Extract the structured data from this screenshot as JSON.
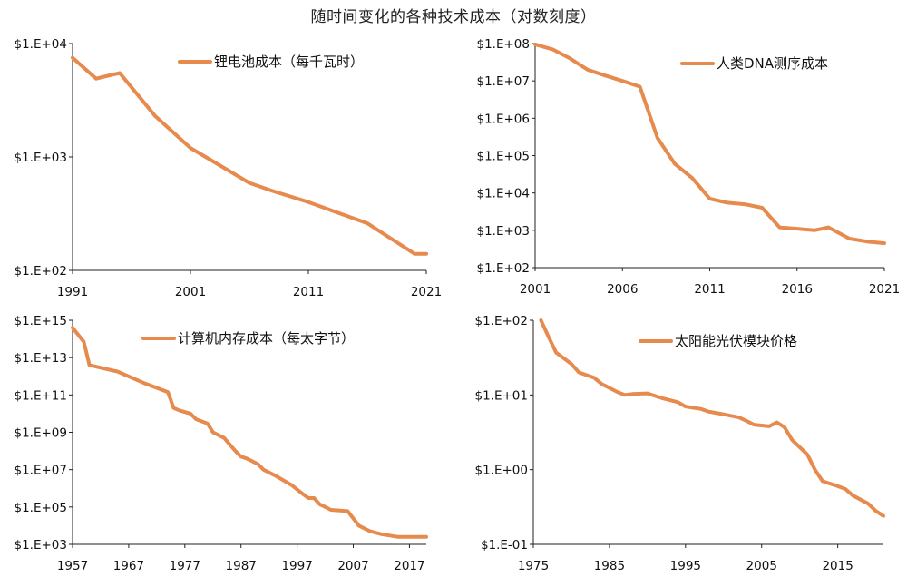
{
  "title": "随时间变化的各种技术成本（对数刻度）",
  "colors": {
    "line": "#E68A4D",
    "axis": "#222222"
  },
  "chart_data": [
    {
      "type": "line",
      "title": "",
      "series": [
        {
          "name": "锂电池成本（每千瓦时）",
          "x": [
            1991,
            1993,
            1994,
            1995,
            1998,
            2001,
            2006,
            2008,
            2011,
            2016,
            2020,
            2021
          ],
          "y": [
            7500,
            4900,
            5200,
            5500,
            2300,
            1200,
            590,
            500,
            400,
            260,
            140,
            140
          ]
        }
      ],
      "y_scale": "log",
      "xlim": [
        1991,
        2021
      ],
      "ylim": [
        100,
        10000
      ],
      "x_ticks": [
        1991,
        2001,
        2011,
        2021
      ],
      "x_tick_labels": [
        "1991",
        "2001",
        "2011",
        "2021"
      ],
      "y_ticks": [
        10000,
        1000,
        100
      ],
      "y_tick_labels": [
        "$1.E+04",
        "$1.E+03",
        "$1.E+02"
      ],
      "legend": "top-right",
      "grid": false
    },
    {
      "type": "line",
      "title": "",
      "series": [
        {
          "name": "人类DNA测序成本",
          "x": [
            2001,
            2002,
            2003,
            2004,
            2005,
            2006,
            2007,
            2008,
            2009,
            2010,
            2011,
            2012,
            2013,
            2014,
            2015,
            2016,
            2017,
            2017.8,
            2019,
            2020,
            2021
          ],
          "y": [
            95000000,
            70000000,
            40000000,
            20000000,
            14000000,
            10000000,
            7000000,
            300000,
            60000,
            25000,
            7000,
            5500,
            5000,
            4000,
            1200,
            1100,
            1000,
            1200,
            600,
            500,
            450
          ]
        }
      ],
      "y_scale": "log",
      "xlim": [
        2001,
        2021
      ],
      "ylim": [
        100,
        100000000
      ],
      "x_ticks": [
        2001,
        2006,
        2011,
        2016,
        2021
      ],
      "x_tick_labels": [
        "2001",
        "2006",
        "2011",
        "2016",
        "2021"
      ],
      "y_ticks": [
        100000000,
        10000000,
        1000000,
        100000,
        10000,
        1000,
        100
      ],
      "y_tick_labels": [
        "$1.E+08",
        "$1.E+07",
        "$1.E+06",
        "$1.E+05",
        "$1.E+04",
        "$1.E+03",
        "$1.E+02"
      ],
      "legend": "top-right",
      "grid": false
    },
    {
      "type": "line",
      "title": "",
      "series": [
        {
          "name": "计算机内存成本（每太字节）",
          "x": [
            1957,
            1959,
            1960,
            1965,
            1970,
            1974,
            1975,
            1976,
            1978,
            1979,
            1981,
            1982,
            1984,
            1986,
            1987,
            1988,
            1990,
            1991,
            1993,
            1996,
            1998,
            1999,
            2000,
            2001,
            2002,
            2003,
            2006,
            2008,
            2010,
            2012,
            2015,
            2020
          ],
          "y": [
            400000000000000.0,
            70000000000000.0,
            4000000000000.0,
            1800000000000.0,
            400000000000.0,
            140000000000.0,
            20000000000.0,
            15000000000.0,
            10000000000.0,
            5000000000.0,
            3000000000.0,
            1000000000.0,
            500000000.0,
            100000000.0,
            50000000.0,
            40000000.0,
            20000000.0,
            10000000.0,
            5000000.0,
            1500000.0,
            500000.0,
            300000.0,
            300000.0,
            140000.0,
            100000.0,
            70000.0,
            60000.0,
            10000.0,
            5000.0,
            3500.0,
            2500.0,
            2500.0
          ]
        }
      ],
      "y_scale": "log",
      "xlim": [
        1957,
        2020
      ],
      "ylim": [
        1000,
        1000000000000000.0
      ],
      "x_ticks": [
        1957,
        1967,
        1977,
        1987,
        1997,
        2007,
        2017
      ],
      "x_tick_labels": [
        "1957",
        "1967",
        "1977",
        "1987",
        "1997",
        "2007",
        "2017"
      ],
      "y_ticks": [
        1000000000000000.0,
        10000000000000.0,
        100000000000.0,
        1000000000.0,
        10000000.0,
        100000.0,
        1000.0
      ],
      "y_tick_labels": [
        "$1.E+15",
        "$1.E+13",
        "$1.E+11",
        "$1.E+09",
        "$1.E+07",
        "$1.E+05",
        "$1.E+03"
      ],
      "legend": "top-center",
      "grid": false
    },
    {
      "type": "line",
      "title": "",
      "series": [
        {
          "name": "太阳能光伏模块价格",
          "x": [
            1976,
            1977,
            1978,
            1980,
            1981,
            1983,
            1984,
            1986,
            1987,
            1988,
            1990,
            1992,
            1994,
            1995,
            1997,
            1998,
            2000,
            2002,
            2003,
            2004,
            2006,
            2007,
            2008,
            2009,
            2011,
            2012,
            2013,
            2015,
            2016,
            2017,
            2019,
            2020,
            2021
          ],
          "y": [
            100,
            60,
            37,
            26,
            20,
            17,
            14,
            11,
            10,
            10.3,
            10.5,
            9,
            8,
            7,
            6.5,
            6,
            5.5,
            5,
            4.5,
            4,
            3.8,
            4.3,
            3.7,
            2.5,
            1.6,
            1,
            0.7,
            0.6,
            0.55,
            0.45,
            0.35,
            0.28,
            0.24
          ]
        }
      ],
      "y_scale": "log",
      "xlim": [
        1975,
        2021
      ],
      "ylim": [
        0.1,
        100
      ],
      "x_ticks": [
        1975,
        1985,
        1995,
        2005,
        2015
      ],
      "x_tick_labels": [
        "1975",
        "1985",
        "1995",
        "2005",
        "2015"
      ],
      "y_ticks": [
        100,
        10,
        1,
        0.1
      ],
      "y_tick_labels": [
        "$1.E+02",
        "$1.E+01",
        "$1.E+00",
        "$1.E-01"
      ],
      "legend": "top-center",
      "grid": false
    }
  ]
}
